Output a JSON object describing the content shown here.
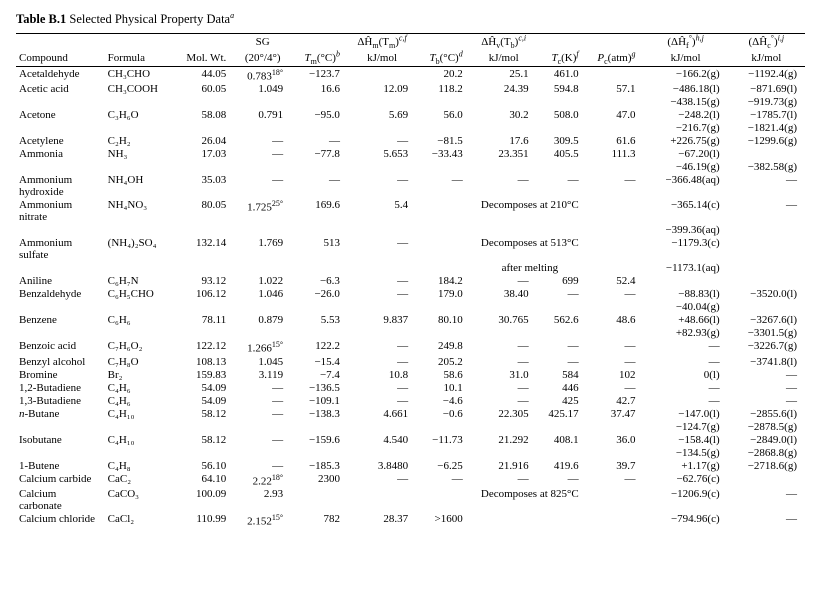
{
  "table": {
    "title_bold": "Table B.1",
    "title_rest": " Selected Physical Property Data",
    "title_super": "a",
    "headers": {
      "compound": "Compound",
      "formula": "Formula",
      "mw": "Mol. Wt.",
      "sg_top": "SG",
      "sg_bot": "(20°/4°)",
      "tm": "T",
      "tm_sub": "m",
      "tm_unit": "(°C)",
      "tm_sup": "b",
      "hm_top": "ΔĤ",
      "hm_top_sub": "m",
      "hm_top_arg": "(T",
      "hm_top_arg_sub": "m",
      "hm_top_arg2": ")",
      "hm_top_sup": "c,f",
      "hm_bot": "kJ/mol",
      "tb": "T",
      "tb_sub": "b",
      "tb_unit": "(°C)",
      "tb_sup": "d",
      "hv_top": "ΔĤ",
      "hv_top_sub": "v",
      "hv_top_arg": "(T",
      "hv_top_arg_sub": "b",
      "hv_top_arg2": ")",
      "hv_top_sup": "c,i",
      "hv_bot": "kJ/mol",
      "tc": "T",
      "tc_sub": "c",
      "tc_unit": "(K)",
      "tc_sup": "f",
      "pc": "P",
      "pc_sub": "c",
      "pc_unit": "(atm)",
      "pc_sup": "g",
      "hf_top": "(ΔĤ",
      "hf_top_sub": "f",
      "hf_top_sup1": "°",
      "hf_top2": ")",
      "hf_top_sup2": "h,j",
      "hf_bot": "kJ/mol",
      "hc_top": "(ΔĤ",
      "hc_top_sub": "c",
      "hc_top_sup1": "°",
      "hc_top2": ")",
      "hc_top_sup2": "i,j",
      "hc_bot": "kJ/mol"
    },
    "rows": [
      {
        "compound": "Acetaldehyde",
        "formula": "CH₃CHO",
        "mw": "44.05",
        "sg": "0.783",
        "sg_sup": "18°",
        "tm": "−123.7",
        "hm": "",
        "tb": "20.2",
        "hv": "25.1",
        "tc": "461.0",
        "pc": "",
        "hf": [
          "−166.2(g)"
        ],
        "hc": [
          "−1192.4(g)"
        ]
      },
      {
        "compound": "Acetic acid",
        "formula": "CH₃COOH",
        "mw": "60.05",
        "sg": "1.049",
        "tm": "16.6",
        "hm": "12.09",
        "tb": "118.2",
        "hv": "24.39",
        "tc": "594.8",
        "pc": "57.1",
        "hf": [
          "−486.18(l)",
          "−438.15(g)"
        ],
        "hc": [
          "−871.69(l)",
          "−919.73(g)"
        ]
      },
      {
        "compound": "Acetone",
        "formula": "C₃H₆O",
        "mw": "58.08",
        "sg": "0.791",
        "tm": "−95.0",
        "hm": "5.69",
        "tb": "56.0",
        "hv": "30.2",
        "tc": "508.0",
        "pc": "47.0",
        "hf": [
          "−248.2(l)",
          "−216.7(g)"
        ],
        "hc": [
          "−1785.7(l)",
          "−1821.4(g)"
        ]
      },
      {
        "compound": "Acetylene",
        "formula": "C₂H₂",
        "mw": "26.04",
        "sg": "—",
        "tm": "—",
        "hm": "—",
        "tb": "−81.5",
        "hv": "17.6",
        "tc": "309.5",
        "pc": "61.6",
        "hf": [
          "+226.75(g)"
        ],
        "hc": [
          "−1299.6(g)"
        ]
      },
      {
        "compound": "Ammonia",
        "formula": "NH₃",
        "mw": "17.03",
        "sg": "—",
        "tm": "−77.8",
        "hm": "5.653",
        "tb": "−33.43",
        "hv": "23.351",
        "tc": "405.5",
        "pc": "111.3",
        "hf": [
          "−67.20(l)",
          "−46.19(g)"
        ],
        "hc": [
          "",
          "−382.58(g)"
        ]
      },
      {
        "compound": "Ammonium hydroxide",
        "formula": "NH₄OH",
        "mw": "35.03",
        "sg": "—",
        "tm": "—",
        "hm": "—",
        "tb": "—",
        "hv": "—",
        "tc": "—",
        "pc": "—",
        "hf": [
          "−366.48(aq)"
        ],
        "hc": [
          "—"
        ]
      },
      {
        "compound": "Ammonium nitrate",
        "formula": "NH₄NO₃",
        "mw": "80.05",
        "sg": "1.725",
        "sg_sup": "25°",
        "tm": "169.6",
        "hm": "5.4",
        "decomp": "Decomposes at 210°C",
        "hf": [
          "−365.14(c)",
          "−399.36(aq)"
        ],
        "hc": [
          "—"
        ]
      },
      {
        "compound": "Ammonium sulfate",
        "formula": "(NH₄)₂SO₄",
        "mw": "132.14",
        "sg": "1.769",
        "tm": "513",
        "hm": "—",
        "decomp": "Decomposes at 513°C after melting",
        "hf": [
          "−1179.3(c)",
          "−1173.1(aq)"
        ],
        "hc": [
          ""
        ]
      },
      {
        "compound": "Aniline",
        "formula": "C₆H₇N",
        "mw": "93.12",
        "sg": "1.022",
        "tm": "−6.3",
        "hm": "—",
        "tb": "184.2",
        "hv": "—",
        "tc": "699",
        "pc": "52.4",
        "hf": [
          ""
        ],
        "hc": [
          ""
        ]
      },
      {
        "compound": "Benzaldehyde",
        "formula": "C₆H₅CHO",
        "mw": "106.12",
        "sg": "1.046",
        "tm": "−26.0",
        "hm": "—",
        "tb": "179.0",
        "hv": "38.40",
        "tc": "—",
        "pc": "—",
        "hf": [
          "−88.83(l)",
          "−40.04(g)"
        ],
        "hc": [
          "−3520.0(l)"
        ]
      },
      {
        "compound": "Benzene",
        "formula": "C₆H₆",
        "mw": "78.11",
        "sg": "0.879",
        "tm": "5.53",
        "hm": "9.837",
        "tb": "80.10",
        "hv": "30.765",
        "tc": "562.6",
        "pc": "48.6",
        "hf": [
          "+48.66(l)",
          "+82.93(g)"
        ],
        "hc": [
          "−3267.6(l)",
          "−3301.5(g)"
        ]
      },
      {
        "compound": "Benzoic acid",
        "formula": "C₇H₆O₂",
        "mw": "122.12",
        "sg": "1.266",
        "sg_sup": "15°",
        "tm": "122.2",
        "hm": "—",
        "tb": "249.8",
        "hv": "—",
        "tc": "—",
        "pc": "—",
        "hf": [
          "—"
        ],
        "hc": [
          "−3226.7(g)"
        ]
      },
      {
        "compound": "Benzyl alcohol",
        "formula": "C₇H₈O",
        "mw": "108.13",
        "sg": "1.045",
        "tm": "−15.4",
        "hm": "—",
        "tb": "205.2",
        "hv": "—",
        "tc": "—",
        "pc": "—",
        "hf": [
          "—"
        ],
        "hc": [
          "−3741.8(l)"
        ]
      },
      {
        "compound": "Bromine",
        "formula": "Br₂",
        "mw": "159.83",
        "sg": "3.119",
        "tm": "−7.4",
        "hm": "10.8",
        "tb": "58.6",
        "hv": "31.0",
        "tc": "584",
        "pc": "102",
        "hf": [
          "0(l)"
        ],
        "hc": [
          "—"
        ]
      },
      {
        "compound": "1,2-Butadiene",
        "formula": "C₄H₆",
        "mw": "54.09",
        "sg": "—",
        "tm": "−136.5",
        "hm": "—",
        "tb": "10.1",
        "hv": "—",
        "tc": "446",
        "pc": "—",
        "hf": [
          "—"
        ],
        "hc": [
          "—"
        ]
      },
      {
        "compound": "1,3-Butadiene",
        "formula": "C₄H₆",
        "mw": "54.09",
        "sg": "—",
        "tm": "−109.1",
        "hm": "—",
        "tb": "−4.6",
        "hv": "—",
        "tc": "425",
        "pc": "42.7",
        "hf": [
          "—"
        ],
        "hc": [
          "—"
        ]
      },
      {
        "compound_html": "<i>n</i>-Butane",
        "formula": "C₄H₁₀",
        "mw": "58.12",
        "sg": "—",
        "tm": "−138.3",
        "hm": "4.661",
        "tb": "−0.6",
        "hv": "22.305",
        "tc": "425.17",
        "pc": "37.47",
        "hf": [
          "−147.0(l)",
          "−124.7(g)"
        ],
        "hc": [
          "−2855.6(l)",
          "−2878.5(g)"
        ]
      },
      {
        "compound": "Isobutane",
        "formula": "C₄H₁₀",
        "mw": "58.12",
        "sg": "—",
        "tm": "−159.6",
        "hm": "4.540",
        "tb": "−11.73",
        "hv": "21.292",
        "tc": "408.1",
        "pc": "36.0",
        "hf": [
          "−158.4(l)",
          "−134.5(g)"
        ],
        "hc": [
          "−2849.0(l)",
          "−2868.8(g)"
        ]
      },
      {
        "compound": "1-Butene",
        "formula": "C₄H₈",
        "mw": "56.10",
        "sg": "—",
        "tm": "−185.3",
        "hm": "3.8480",
        "tb": "−6.25",
        "hv": "21.916",
        "tc": "419.6",
        "pc": "39.7",
        "hf": [
          "+1.17(g)"
        ],
        "hc": [
          "−2718.6(g)"
        ]
      },
      {
        "compound": "Calcium carbide",
        "formula": "CaC₂",
        "mw": "64.10",
        "sg": "2.22",
        "sg_sup": "18°",
        "tm": "2300",
        "hm": "—",
        "tb": "—",
        "hv": "—",
        "tc": "—",
        "pc": "—",
        "hf": [
          "−62.76(c)"
        ],
        "hc": [
          ""
        ]
      },
      {
        "compound": "Calcium carbonate",
        "formula": "CaCO₃",
        "mw": "100.09",
        "sg": "2.93",
        "tm": "",
        "hm": "",
        "decomp": "Decomposes at 825°C",
        "hf": [
          "−1206.9(c)"
        ],
        "hc": [
          "—"
        ]
      },
      {
        "compound": "Calcium chloride",
        "formula": "CaCl₂",
        "mw": "110.99",
        "sg": "2.152",
        "sg_sup": "15°",
        "tm": "782",
        "hm": "28.37",
        "tb": ">1600",
        "hv": "",
        "tc": "",
        "pc": "",
        "hf": [
          "−794.96(c)"
        ],
        "hc": [
          "—"
        ]
      }
    ]
  }
}
